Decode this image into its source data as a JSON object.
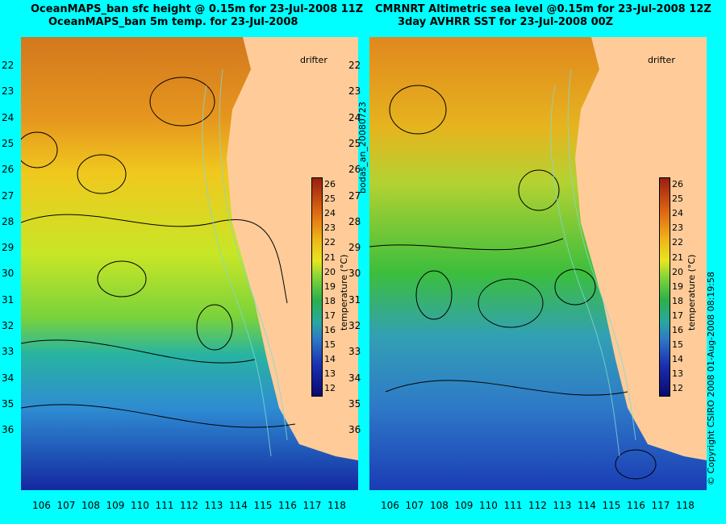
{
  "left_panel": {
    "title_line1": "OceanMAPS_ban sfc height @ 0.15m for 23-Jul-2008 11Z",
    "title_line2": "OceanMAPS_ban 5m temp. for 23-Jul-2008",
    "drifter_label": "drifter"
  },
  "right_panel": {
    "title_line1": "CMRNRT Altimetric sea level  @0.15m  for 23-Jul-2008 12Z",
    "title_line2": "3day AVHRR SST for 23-Jul-2008 00Z",
    "drifter_label": "drifter"
  },
  "middle_label": "bodas_an_20080723",
  "right_edge_label": "© Copyright CSIRO 2008    01-Aug-2008 08:19:58",
  "lat_ticks": [
    "22",
    "23",
    "24",
    "25",
    "26",
    "27",
    "28",
    "29",
    "30",
    "31",
    "32",
    "33",
    "34",
    "35",
    "36"
  ],
  "lon_ticks": [
    "106",
    "107",
    "108",
    "109",
    "110",
    "111",
    "112",
    "113",
    "114",
    "115",
    "116",
    "117",
    "118"
  ],
  "colorbar": {
    "label": "temperature (°C)",
    "ticks": [
      "26",
      "25",
      "24",
      "23",
      "22",
      "21",
      "20",
      "19",
      "18",
      "17",
      "16",
      "15",
      "14",
      "13",
      "12"
    ],
    "colors": [
      "#9a1e10",
      "#e06a14",
      "#f0b418",
      "#e6e61e",
      "#7fd23a",
      "#2bb04a",
      "#28a8a0",
      "#2e78c8",
      "#1a2fb0",
      "#0a0a6e"
    ]
  },
  "colors": {
    "background": "#00ffff",
    "land": "#ffcc99"
  }
}
